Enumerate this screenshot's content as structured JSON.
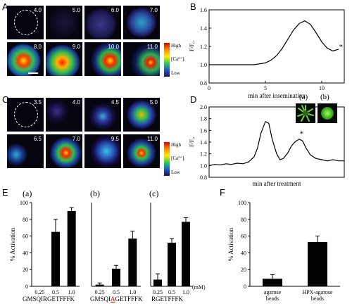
{
  "panels": {
    "A": {
      "label": "A",
      "times": [
        "4.0",
        "5.0",
        "6.0",
        "7.0",
        "8.0",
        "9.0",
        "10.0",
        "11.0"
      ]
    },
    "C": {
      "label": "C",
      "times": [
        "3.5",
        "4.0",
        "4.5",
        "5.0",
        "6.5",
        "7.0",
        "9.5",
        "11.0"
      ]
    },
    "colorbar": {
      "high": "High",
      "low": "Low",
      "ion": "[Ca²⁺]ᵢ"
    },
    "B": {
      "label": "B",
      "annotation": "*"
    },
    "D": {
      "label": "D",
      "annotation": "*",
      "inset_a": "(a)",
      "inset_b": "(b)"
    },
    "E": {
      "label": "E",
      "subpanels": [
        {
          "label": "(a)",
          "peptide": "GMSQIRGETFFFK"
        },
        {
          "label": "(b)",
          "peptide_pre": "GMSQI",
          "peptide_mut": "A",
          "peptide_post": "GETFFFK"
        },
        {
          "label": "(c)",
          "peptide": "RGETFFFK"
        }
      ],
      "unit": "(mM)"
    },
    "F": {
      "label": "F"
    }
  },
  "chart_data": [
    {
      "type": "line",
      "panel": "B",
      "xlabel": "min after insemination",
      "ylabel": "F/F₀",
      "xlim": [
        0,
        12
      ],
      "ylim": [
        0.8,
        1.6
      ],
      "xticks": [
        0,
        5,
        10
      ],
      "yticks": [
        0.8,
        1.0,
        1.2,
        1.4,
        1.6
      ],
      "x": [
        0,
        1,
        2,
        3,
        4,
        4.5,
        5,
        5.5,
        6,
        6.5,
        7,
        7.5,
        8,
        8.5,
        9,
        9.5,
        10,
        10.5,
        11,
        11.5
      ],
      "y": [
        1.0,
        1.0,
        1.0,
        1.0,
        1.0,
        1.01,
        1.02,
        1.05,
        1.1,
        1.18,
        1.28,
        1.38,
        1.45,
        1.48,
        1.44,
        1.35,
        1.25,
        1.18,
        1.15,
        1.17
      ]
    },
    {
      "type": "line",
      "panel": "D",
      "xlabel": "min after treatment",
      "ylabel": "F/F₀",
      "xlim": [
        0,
        12
      ],
      "ylim": [
        0.8,
        2.0
      ],
      "yticks": [
        0.8,
        1.0,
        1.2,
        1.4,
        1.6,
        1.8,
        2.0
      ],
      "x": [
        0,
        0.5,
        1,
        1.5,
        2,
        2.5,
        3,
        3.5,
        4,
        4.3,
        4.6,
        5,
        5.3,
        5.6,
        6,
        6.3,
        6.6,
        7,
        7.3,
        7.6,
        8,
        8.3,
        8.6,
        9,
        9.5,
        10,
        10.5,
        11,
        11.5,
        12
      ],
      "y": [
        1.0,
        1.02,
        1.01,
        1.03,
        1.02,
        1.04,
        1.03,
        1.06,
        1.15,
        1.3,
        1.55,
        1.75,
        1.72,
        1.45,
        1.2,
        1.1,
        1.12,
        1.22,
        1.33,
        1.4,
        1.45,
        1.42,
        1.3,
        1.18,
        1.12,
        1.1,
        1.08,
        1.1,
        1.08,
        1.08
      ]
    },
    {
      "type": "bar",
      "panel": "E(a)",
      "ylabel": "% Activation",
      "ylim": [
        0,
        100
      ],
      "yticks": [
        0,
        20,
        40,
        60,
        80,
        100
      ],
      "categories": [
        "0.25",
        "0.5",
        "1.0"
      ],
      "values": [
        0,
        65,
        90
      ],
      "errors": [
        0,
        15,
        4
      ]
    },
    {
      "type": "bar",
      "panel": "E(b)",
      "ylim": [
        0,
        100
      ],
      "categories": [
        "0.25",
        "0.5",
        "1.0"
      ],
      "values": [
        2,
        21,
        57
      ],
      "errors": [
        2,
        4,
        9
      ]
    },
    {
      "type": "bar",
      "panel": "E(c)",
      "ylim": [
        0,
        100
      ],
      "categories": [
        "0.25",
        "0.5",
        "1.0"
      ],
      "values": [
        8,
        52,
        77
      ],
      "errors": [
        7,
        5,
        5
      ]
    },
    {
      "type": "bar",
      "panel": "F",
      "ylabel": "% Activation",
      "ylim": [
        0,
        100
      ],
      "yticks": [
        0,
        20,
        40,
        60,
        80,
        100
      ],
      "categories": [
        "agarose beads",
        "HPX-agarose beads"
      ],
      "values": [
        9,
        53
      ],
      "errors": [
        5,
        7
      ]
    }
  ]
}
